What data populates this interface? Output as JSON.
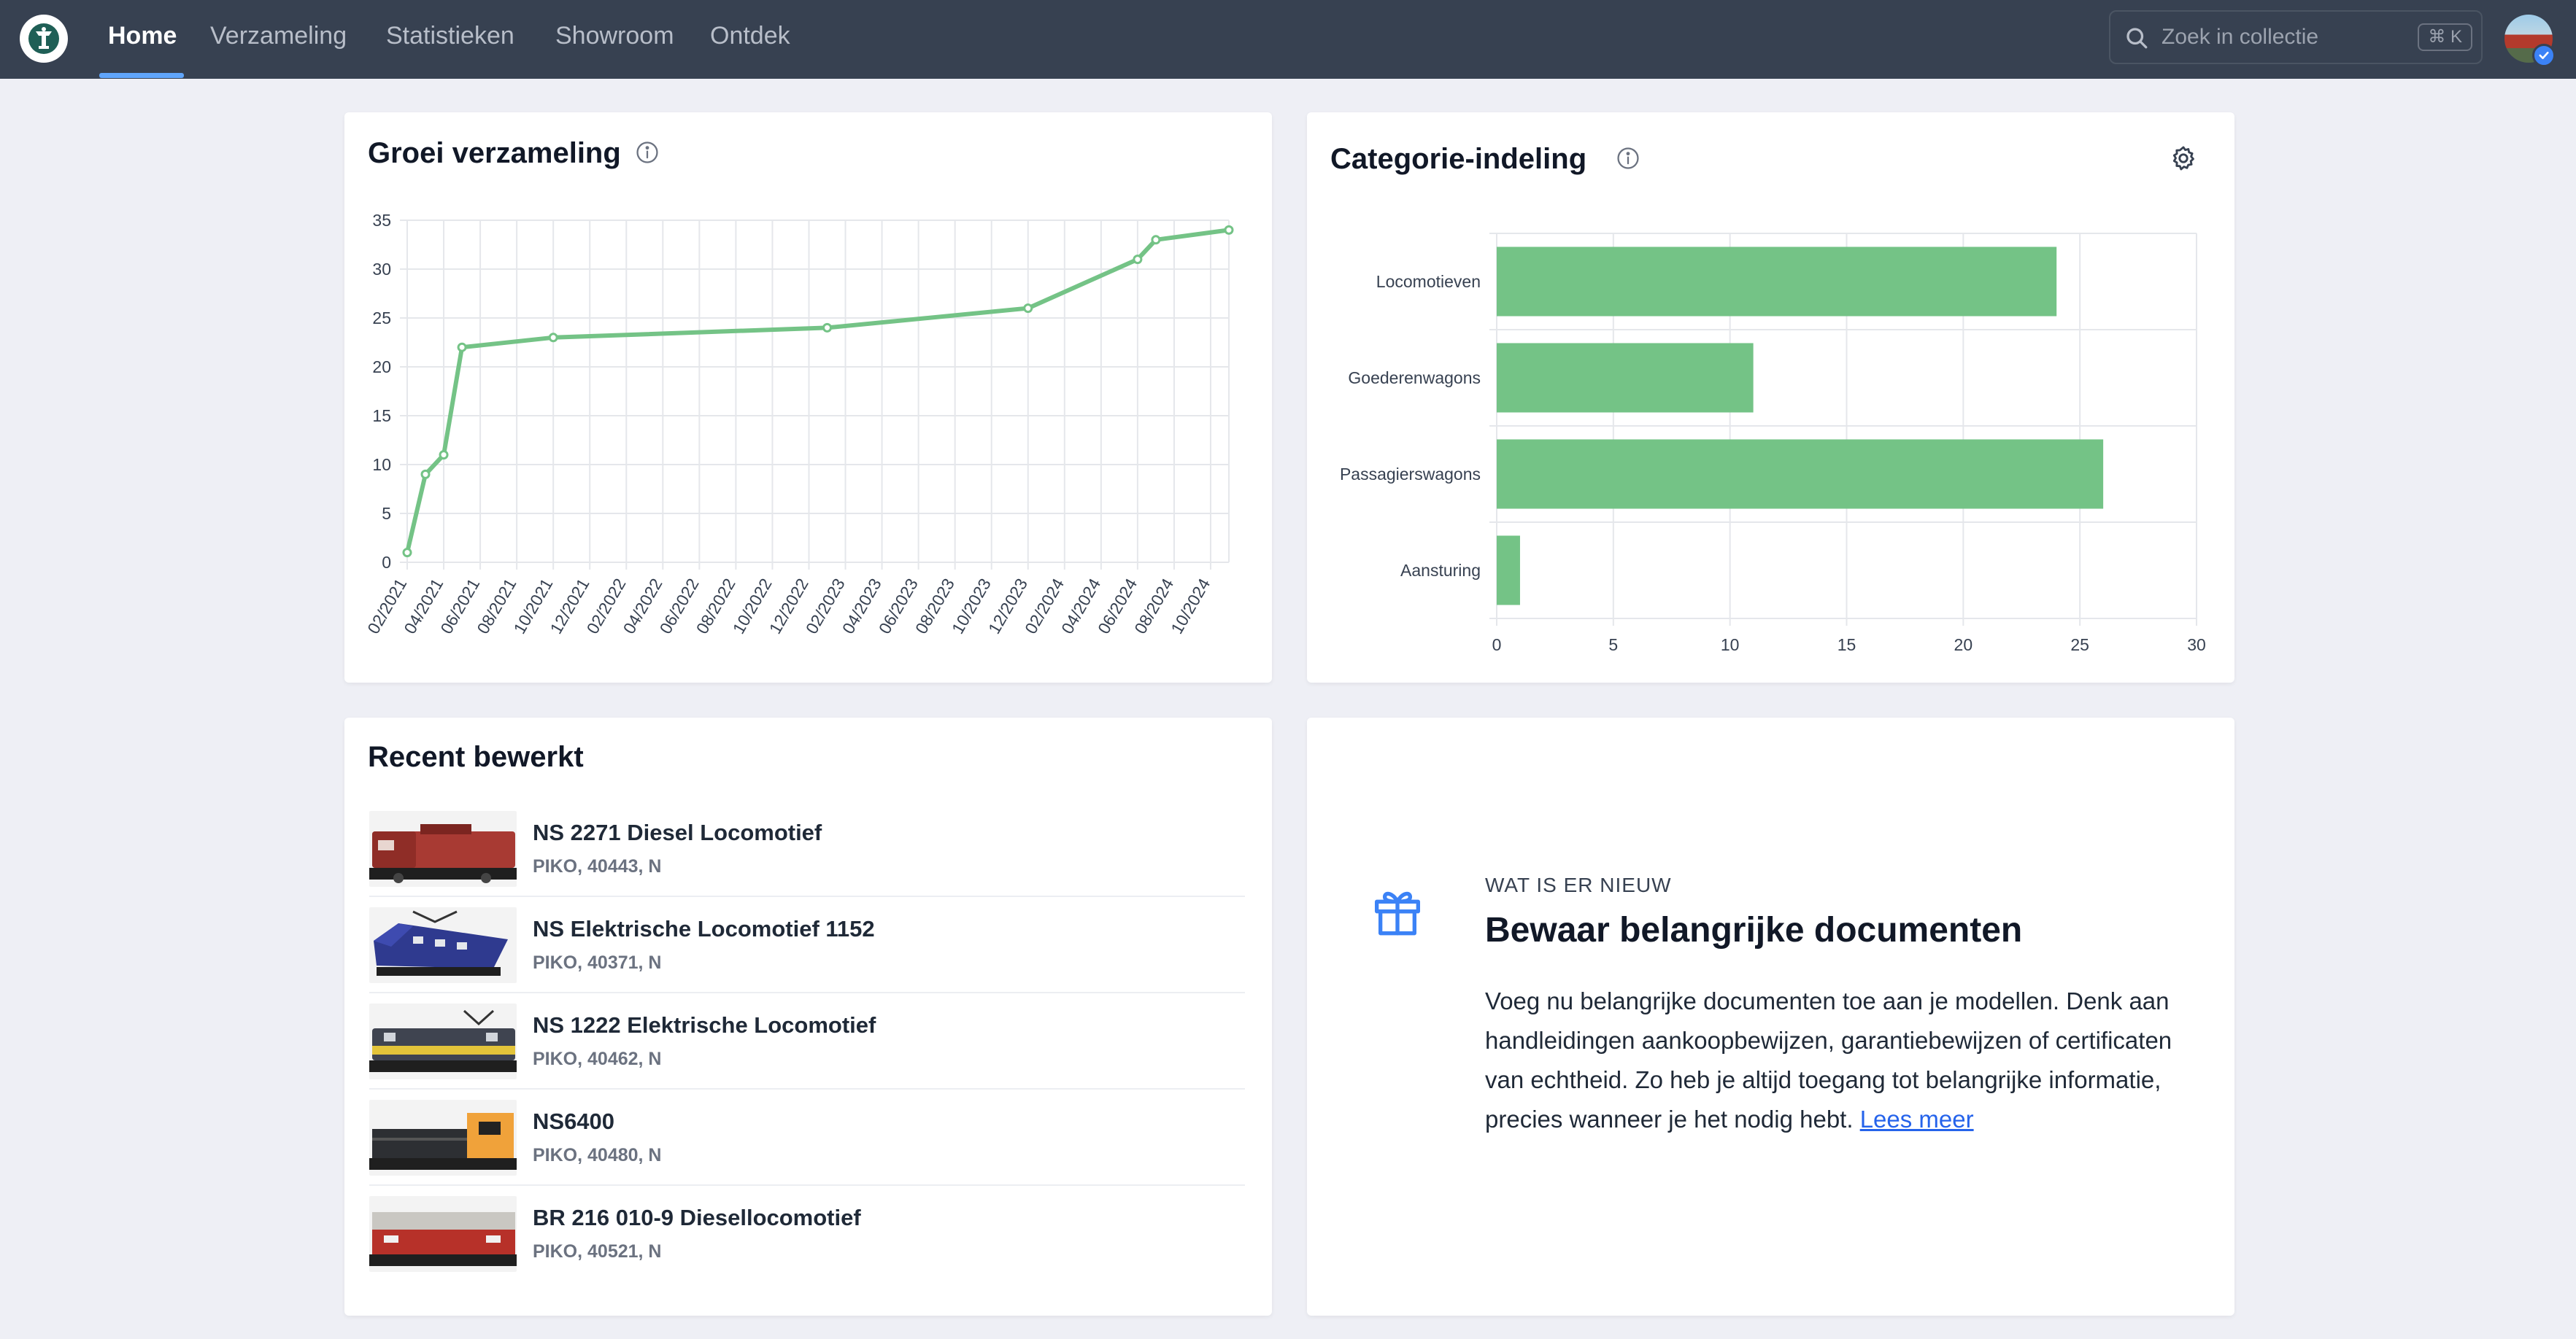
{
  "nav": {
    "items": [
      {
        "label": "Home",
        "active": true
      },
      {
        "label": "Verzameling",
        "active": false
      },
      {
        "label": "Statistieken",
        "active": false
      },
      {
        "label": "Showroom",
        "active": false
      },
      {
        "label": "Ontdek",
        "active": false
      }
    ],
    "search_placeholder": "Zoek in collectie",
    "search_shortcut": "⌘ K",
    "icons": {
      "logo": "lighthouse-logo",
      "search": "search-icon",
      "avatar_badge": "verified-check-icon"
    }
  },
  "growth": {
    "title": "Groei verzameling",
    "info_icon": "info-icon"
  },
  "category": {
    "title": "Categorie-indeling",
    "info_icon": "info-icon",
    "settings_icon": "gear-icon"
  },
  "chart_data": [
    {
      "type": "line",
      "title": "Groei verzameling",
      "xlabel": "",
      "ylabel": "",
      "ylim": [
        0,
        35
      ],
      "yticks": [
        "0",
        "5",
        "10",
        "15",
        "20",
        "25",
        "30",
        "35"
      ],
      "xticks": [
        "02/2021",
        "04/2021",
        "06/2021",
        "08/2021",
        "10/2021",
        "12/2021",
        "02/2022",
        "04/2022",
        "06/2022",
        "08/2022",
        "10/2022",
        "12/2022",
        "02/2023",
        "04/2023",
        "06/2023",
        "08/2023",
        "10/2023",
        "12/2023",
        "02/2024",
        "04/2024",
        "06/2024",
        "08/2024",
        "10/2024"
      ],
      "grid": true,
      "color": "#74c386",
      "points": [
        {
          "x": "02/2021",
          "y": 1
        },
        {
          "x": "03/2021",
          "y": 9
        },
        {
          "x": "04/2021",
          "y": 11
        },
        {
          "x": "05/2021",
          "y": 22
        },
        {
          "x": "10/2021",
          "y": 23
        },
        {
          "x": "01/2023",
          "y": 24
        },
        {
          "x": "12/2023",
          "y": 26
        },
        {
          "x": "06/2024",
          "y": 31
        },
        {
          "x": "07/2024",
          "y": 33
        },
        {
          "x": "11/2024",
          "y": 34
        }
      ]
    },
    {
      "type": "bar",
      "orientation": "horizontal",
      "title": "Categorie-indeling",
      "categories": [
        "Locomotieven",
        "Goederenwagons",
        "Passagierswagons",
        "Aansturing"
      ],
      "values": [
        24,
        11,
        26,
        1
      ],
      "xlim": [
        0,
        30
      ],
      "xticks": [
        "0",
        "5",
        "10",
        "15",
        "20",
        "25",
        "30"
      ],
      "grid": true,
      "color": "#74c386"
    }
  ],
  "recent": {
    "title": "Recent bewerkt",
    "items": [
      {
        "title": "NS 2271 Diesel Locomotief",
        "subtitle": "PIKO, 40443, N"
      },
      {
        "title": "NS Elektrische Locomotief 1152",
        "subtitle": "PIKO, 40371, N"
      },
      {
        "title": "NS 1222 Elektrische Locomotief",
        "subtitle": "PIKO, 40462, N"
      },
      {
        "title": "NS6400",
        "subtitle": "PIKO, 40480, N"
      },
      {
        "title": "BR 216 010-9 Diesellocomotief",
        "subtitle": "PIKO, 40521, N"
      }
    ]
  },
  "news": {
    "icon": "gift-icon",
    "eyebrow": "WAT IS ER NIEUW",
    "title": "Bewaar belangrijke documenten",
    "body": "Voeg nu belangrijke documenten toe aan je modellen. Denk aan handleidingen aankoopbewijzen, garantiebewijzen of certificaten van echtheid. Zo heb je altijd toegang tot belangrijke informatie, precies wanneer je het nodig hebt.",
    "link_label": "Lees meer"
  }
}
